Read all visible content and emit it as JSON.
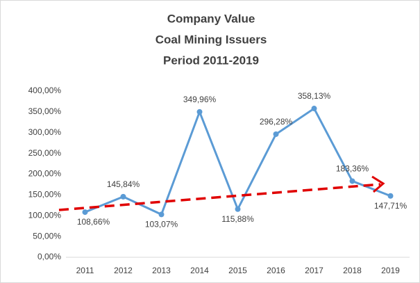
{
  "chart_data": {
    "type": "line",
    "title": [
      "Company Value",
      "Coal Mining Issuers",
      "Period 2011-2019"
    ],
    "categories": [
      "2011",
      "2012",
      "2013",
      "2014",
      "2015",
      "2016",
      "2017",
      "2018",
      "2019"
    ],
    "series": [
      {
        "color": "#5b9bd5",
        "values": [
          108.66,
          145.84,
          103.07,
          349.96,
          115.88,
          296.28,
          358.13,
          183.36,
          147.71
        ],
        "value_labels": [
          "108,66%",
          "145,84%",
          "103,07%",
          "349,96%",
          "115,88%",
          "296,28%",
          "358,13%",
          "183,36%",
          "147,71%"
        ]
      }
    ],
    "ylim": [
      0,
      400
    ],
    "yticks": [
      {
        "value": 0,
        "label": "0,00%"
      },
      {
        "value": 50,
        "label": "50,00%"
      },
      {
        "value": 100,
        "label": "100,00%"
      },
      {
        "value": 150,
        "label": "150,00%"
      },
      {
        "value": 200,
        "label": "200,00%"
      },
      {
        "value": 250,
        "label": "250,00%"
      },
      {
        "value": 300,
        "label": "300,00%"
      },
      {
        "value": 350,
        "label": "350,00%"
      },
      {
        "value": 400,
        "label": "400,00%"
      }
    ],
    "grid": false
  }
}
